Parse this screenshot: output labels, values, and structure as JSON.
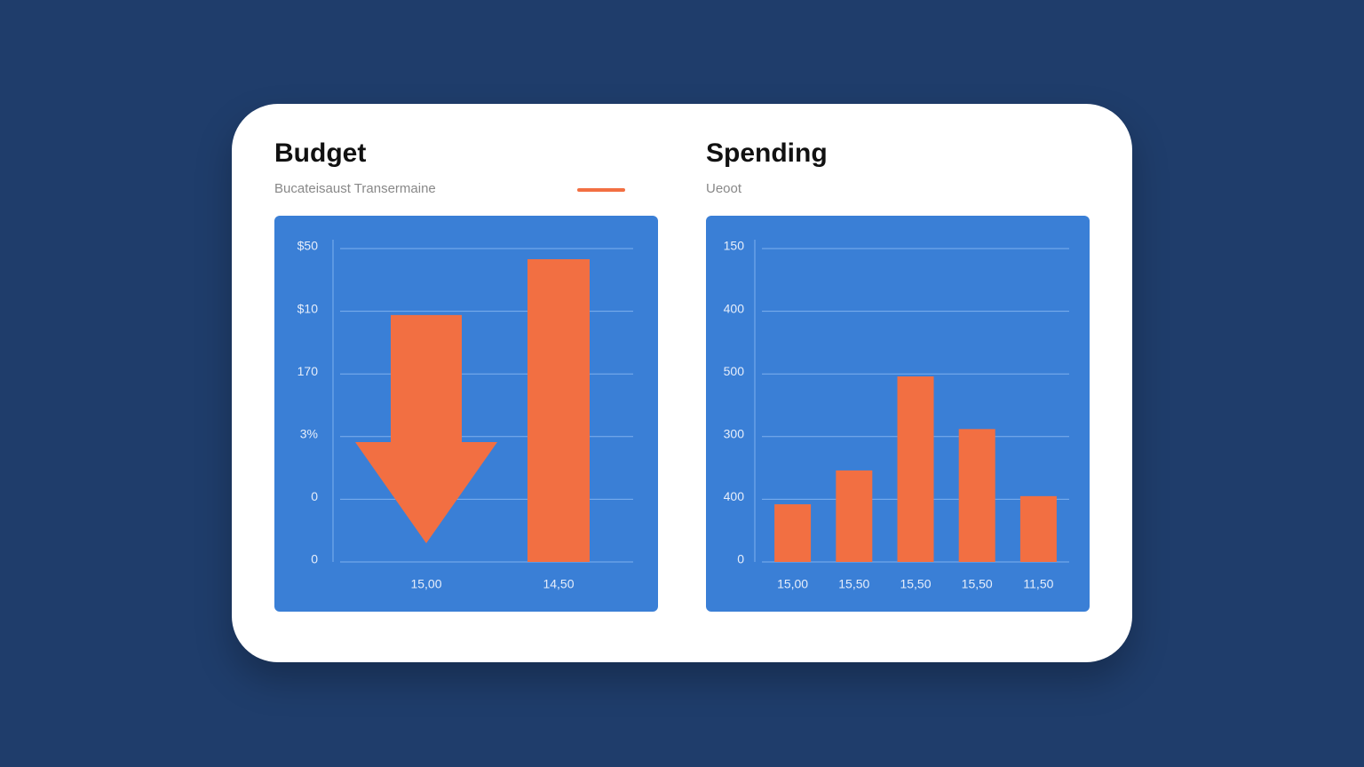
{
  "chart_data": [
    {
      "type": "bar",
      "title": "Budget",
      "subtitle": "Bucateisaust Transermaine",
      "categories": [
        "15,00",
        "14,50"
      ],
      "values": [
        3.94,
        4.83
      ],
      "color": "#f26f42",
      "ylim": [
        0,
        5
      ],
      "yticks": [
        {
          "value": 0,
          "label": "0"
        },
        {
          "value": 1,
          "label": "0"
        },
        {
          "value": 2,
          "label": "3%"
        },
        {
          "value": 3,
          "label": "170"
        },
        {
          "value": 4,
          "label": "$10"
        },
        {
          "value": 5,
          "label": "$50"
        }
      ],
      "grid": true
    },
    {
      "type": "bar",
      "title": "Spending",
      "subtitle": "Ueoot",
      "categories": [
        "15,00",
        "15,50",
        "15,50",
        "15,50",
        "11,50"
      ],
      "values": [
        0.92,
        1.46,
        2.96,
        2.12,
        1.05
      ],
      "color": "#f26f42",
      "ylim": [
        0,
        5
      ],
      "yticks": [
        {
          "value": 0,
          "label": "0"
        },
        {
          "value": 1,
          "label": "400"
        },
        {
          "value": 2,
          "label": "300"
        },
        {
          "value": 3,
          "label": "500"
        },
        {
          "value": 4,
          "label": "400"
        },
        {
          "value": 5,
          "label": "150"
        }
      ],
      "grid": true
    }
  ]
}
